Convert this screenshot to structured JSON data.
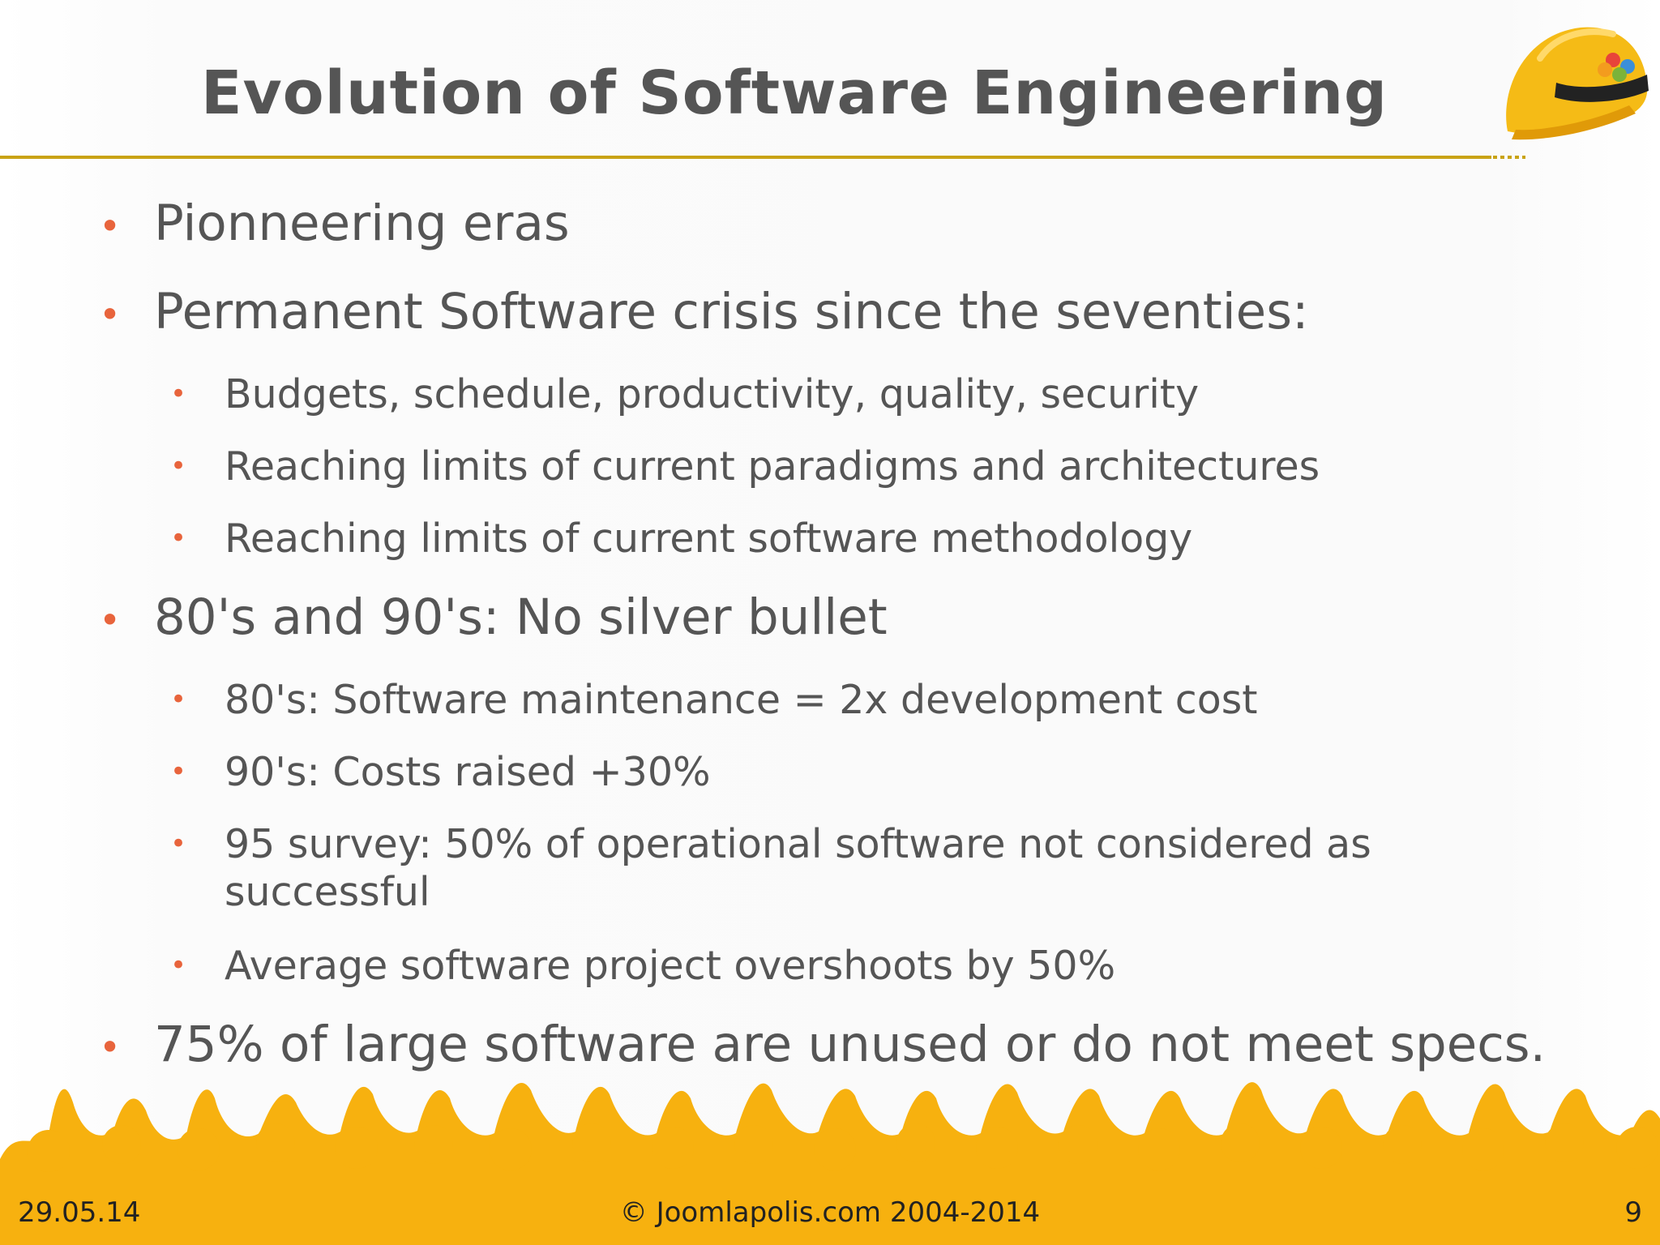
{
  "slide": {
    "title": "Evolution of Software Engineering",
    "bullets": [
      {
        "text": "Pionneering eras"
      },
      {
        "text": "Permanent Software crisis since the seventies:",
        "sub": [
          "Budgets, schedule, productivity, quality, security",
          "Reaching limits of current paradigms and architectures",
          "Reaching limits of current software methodology"
        ]
      },
      {
        "text": "80's and 90's: No silver bullet",
        "sub": [
          "80's: Software maintenance = 2x development cost",
          "90's: Costs raised +30%",
          "95 survey: 50% of operational software not considered as",
          "successful",
          "Average software project overshoots by 50%"
        ]
      },
      {
        "text": "75% of large software are unused or do not meet specs."
      }
    ],
    "bullet_color": "#e8643c",
    "accent_color": "#f7b10f",
    "rule_color": "#c9a316"
  },
  "footer": {
    "date": "29.05.14",
    "copyright": "© Joomlapolis.com 2004-2014",
    "page": "9"
  }
}
